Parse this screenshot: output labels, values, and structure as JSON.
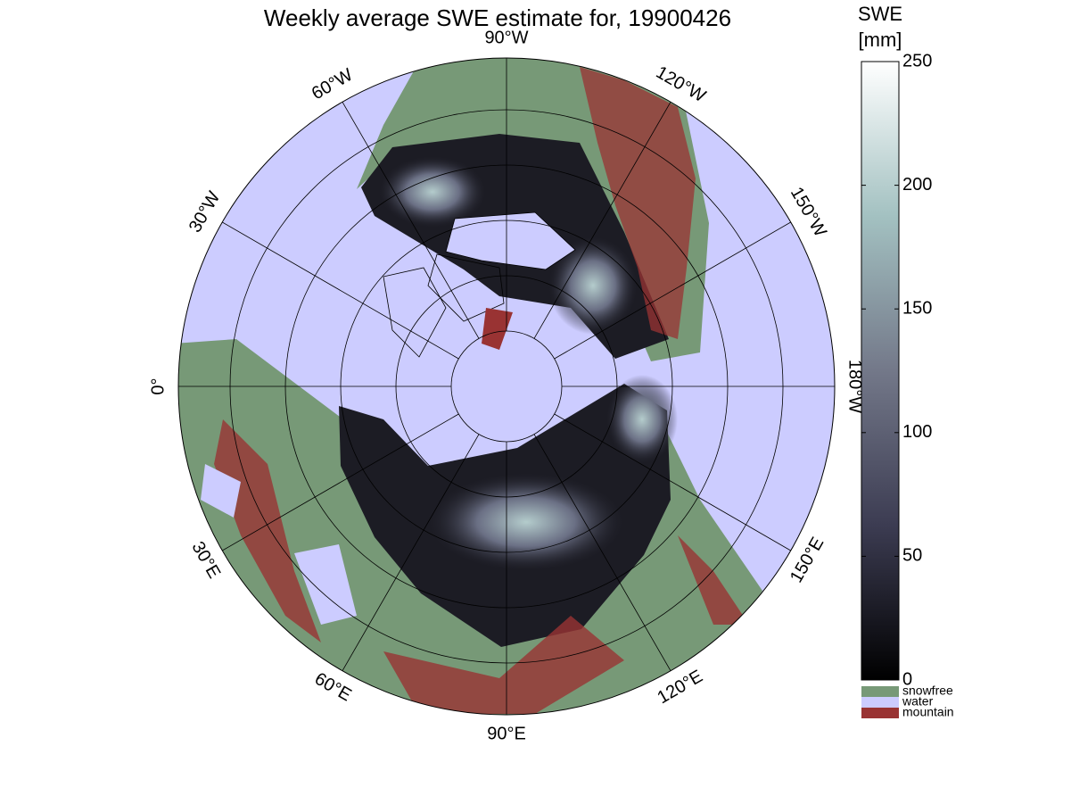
{
  "title": "Weekly average SWE estimate for, 19900426",
  "map": {
    "meridians": [
      {
        "value": -90,
        "label": "90°W"
      },
      {
        "value": -60,
        "label": "60°W"
      },
      {
        "value": -30,
        "label": "30°W"
      },
      {
        "value": 0,
        "label": "0°"
      },
      {
        "value": 30,
        "label": "30°E"
      },
      {
        "value": 60,
        "label": "60°E"
      },
      {
        "value": 90,
        "label": "90°E"
      },
      {
        "value": 120,
        "label": "120°E"
      },
      {
        "value": 150,
        "label": "150°E"
      },
      {
        "value": -180,
        "label": "180°W"
      },
      {
        "value": -150,
        "label": "150°W"
      },
      {
        "value": -120,
        "label": "120°W"
      }
    ]
  },
  "colorbar": {
    "label": "SWE",
    "unit": "[mm]",
    "lim": [
      0,
      250
    ],
    "ticks": [
      0,
      50,
      100,
      150,
      200,
      250
    ]
  },
  "legend": [
    {
      "name": "snowfree",
      "color": "#779977"
    },
    {
      "name": "water",
      "color": "#ccccff"
    },
    {
      "name": "mountain",
      "color": "#993333"
    }
  ]
}
